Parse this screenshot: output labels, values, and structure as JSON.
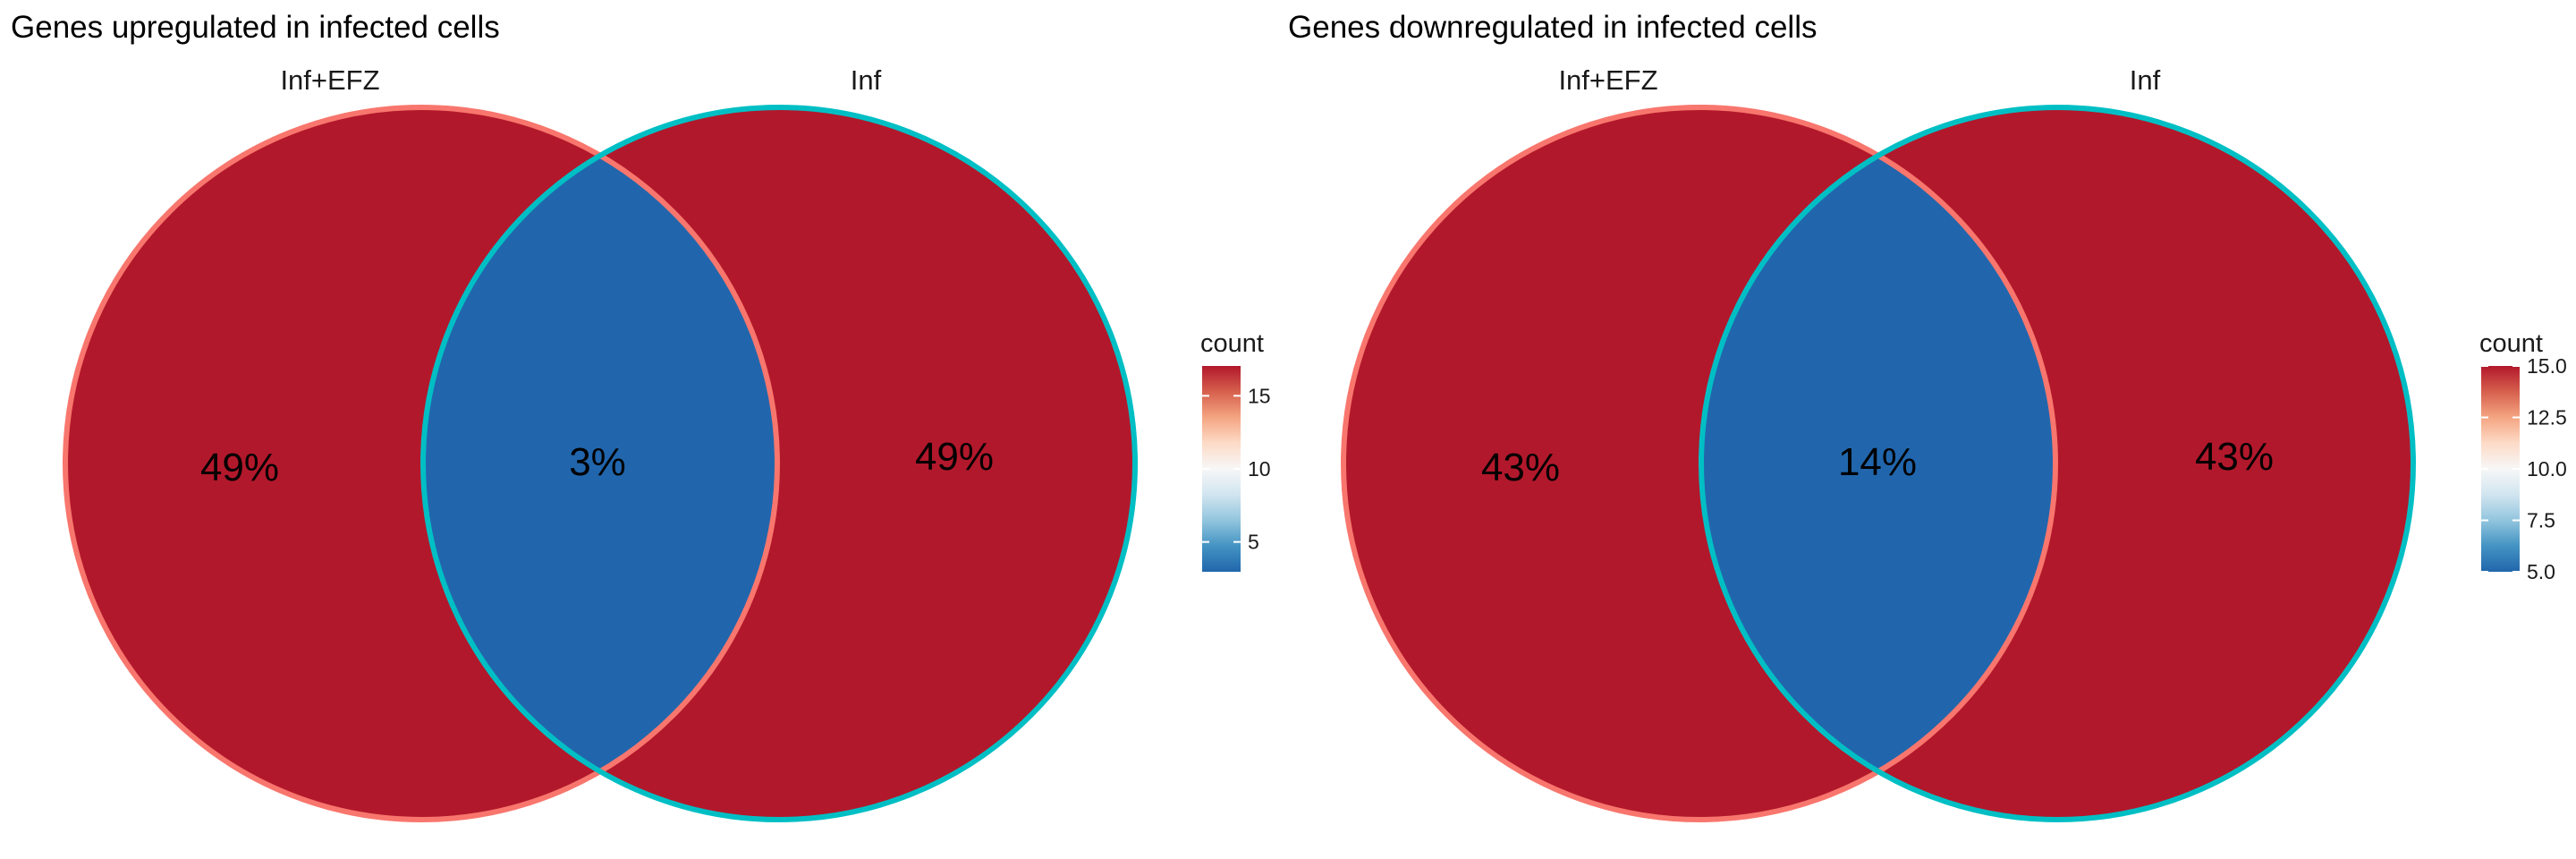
{
  "colors": {
    "high": "#b2182b",
    "low": "#2166ac",
    "outline_left": "#f8766d",
    "outline_right": "#00bfc4",
    "legend_gradient": [
      "#2166ac",
      "#4393c3",
      "#92c5de",
      "#d1e5f0",
      "#f7f7f7",
      "#fddbc7",
      "#f4a582",
      "#d6604d",
      "#b2182b"
    ]
  },
  "panels": [
    {
      "title": "Genes upregulated in infected cells",
      "sets": [
        "Inf+EFZ",
        "Inf"
      ],
      "regions": {
        "left_only": "49%",
        "overlap": "3%",
        "right_only": "49%"
      },
      "region_colors": {
        "left_only": "high",
        "overlap": "low",
        "right_only": "high"
      },
      "legend": {
        "title": "count",
        "ticks": [
          "15",
          "10",
          "5"
        ],
        "tick_fractions": [
          0.855,
          0.5,
          0.145
        ]
      }
    },
    {
      "title": "Genes downregulated in infected cells",
      "sets": [
        "Inf+EFZ",
        "Inf"
      ],
      "regions": {
        "left_only": "43%",
        "overlap": "14%",
        "right_only": "43%"
      },
      "region_colors": {
        "left_only": "high",
        "overlap": "low",
        "right_only": "high"
      },
      "legend": {
        "title": "count",
        "ticks": [
          "15.0",
          "12.5",
          "10.0",
          "7.5",
          "5.0"
        ],
        "tick_fractions": [
          1.0,
          0.75,
          0.5,
          0.25,
          0.0
        ]
      }
    }
  ]
}
